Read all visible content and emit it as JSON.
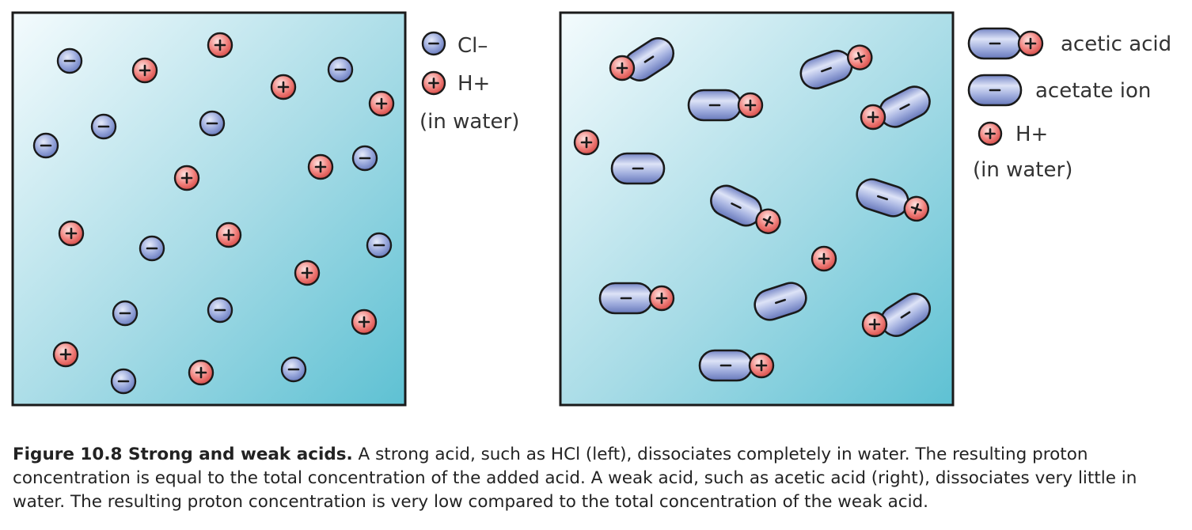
{
  "legend_left": {
    "chloride": "Cl–",
    "proton": "H+",
    "medium": "(in water)"
  },
  "legend_right": {
    "acetic_acid": "acetic acid",
    "acetate_ion": "acetate ion",
    "proton": "H+",
    "medium": "(in water)"
  },
  "caption": {
    "label": "Figure 10.8 Strong and weak acids.",
    "text": " A strong acid, such as HCl (left), dissociates completely in water. The resulting proton concentration is equal to the total concentration of the added acid. A weak acid, such as acetic acid (right), dissociates very little in water. The resulting proton concentration is very low compared to the total concentration of the weak acid."
  },
  "colors": {
    "negative_ion": "#8c9dd4",
    "positive_ion": "#ee6e6a",
    "water_light": "#eef8fb",
    "water_dark": "#5fc2d4"
  }
}
